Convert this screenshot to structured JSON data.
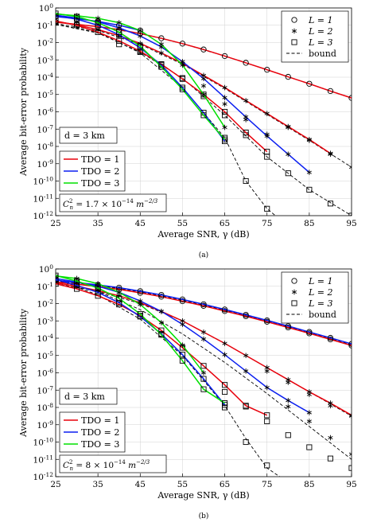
{
  "chart_data": [
    {
      "type": "line",
      "caption": "(a)",
      "xlabel": "Average SNR, γ (dB)",
      "ylabel": "Average bit-error probability",
      "xlim": [
        25,
        95
      ],
      "ylim_exp": [
        -12,
        0
      ],
      "yscale": "log",
      "grid": true,
      "x_ticks": [
        25,
        35,
        45,
        55,
        65,
        75,
        85,
        95
      ],
      "y_tick_exponents": [
        0,
        -1,
        -2,
        -3,
        -4,
        -5,
        -6,
        -7,
        -8,
        -9,
        -10,
        -11,
        -12
      ],
      "y_tick_prefix": "10",
      "annotation_distance": "d = 3 km",
      "annotation_cn2": {
        "lhs": "C",
        "sub": "n",
        "sup": "2",
        "eq": " = 1.7 × 10",
        "exp": "−14",
        "unit": " m",
        "unit_exp": "−2/3"
      },
      "marker_legend": {
        "position": "top-right",
        "entries": [
          {
            "label": "L = 1",
            "marker": "circle"
          },
          {
            "label": "L = 2",
            "marker": "star"
          },
          {
            "label": "L = 3",
            "marker": "square"
          },
          {
            "label": "bound",
            "marker": "dashed-line"
          }
        ]
      },
      "color_legend": {
        "position": "bottom-left",
        "entries": [
          {
            "label": "TDO = 1",
            "color": "#e8000b"
          },
          {
            "label": "TDO = 2",
            "color": "#0b1ff0"
          },
          {
            "label": "TDO = 3",
            "color": "#00e000"
          }
        ]
      },
      "series": [
        {
          "tdo": 1,
          "L": 1,
          "color": "#e8000b",
          "marker": "circle",
          "x": [
            25,
            30,
            35,
            40,
            45,
            50,
            55,
            60,
            65,
            70,
            75,
            80,
            85,
            90,
            95
          ],
          "log10y": [
            -0.82,
            -0.95,
            -1.08,
            -1.25,
            -1.48,
            -1.75,
            -2.06,
            -2.4,
            -2.78,
            -3.17,
            -3.57,
            -3.98,
            -4.38,
            -4.8,
            -5.2
          ]
        },
        {
          "tdo": 1,
          "L": 2,
          "color": "#e8000b",
          "marker": "star",
          "x": [
            25,
            30,
            35,
            40,
            45,
            50,
            55,
            60,
            65,
            70,
            75,
            80,
            85,
            90
          ],
          "log10y": [
            -0.78,
            -0.98,
            -1.25,
            -1.6,
            -2.05,
            -2.6,
            -3.2,
            -3.9,
            -4.6,
            -5.35,
            -6.1,
            -6.85,
            -7.6,
            -8.4
          ]
        },
        {
          "tdo": 1,
          "L": 3,
          "color": "#e8000b",
          "marker": "square",
          "x": [
            25,
            30,
            35,
            40,
            45,
            50,
            55,
            60,
            65,
            70,
            75
          ],
          "log10y": [
            -0.75,
            -1.0,
            -1.4,
            -1.9,
            -2.5,
            -3.25,
            -4.1,
            -5.0,
            -6.0,
            -7.2,
            -8.3
          ]
        },
        {
          "tdo": 2,
          "L": 1,
          "color": "#0b1ff0",
          "marker": "circle",
          "x": [
            25,
            30,
            35,
            40,
            45
          ],
          "log10y": [
            -0.5,
            -0.62,
            -0.78,
            -1.0,
            -1.3
          ]
        },
        {
          "tdo": 2,
          "L": 2,
          "color": "#0b1ff0",
          "marker": "star",
          "x": [
            25,
            30,
            35,
            40,
            45,
            50,
            55,
            60,
            65,
            70,
            75,
            80,
            85
          ],
          "log10y": [
            -0.42,
            -0.58,
            -0.8,
            -1.15,
            -1.62,
            -2.25,
            -3.1,
            -4.08,
            -5.18,
            -6.3,
            -7.4,
            -8.45,
            -9.5
          ]
        },
        {
          "tdo": 2,
          "L": 3,
          "color": "#0b1ff0",
          "marker": "square",
          "x": [
            25,
            30,
            35,
            40,
            45,
            50,
            55,
            60,
            65
          ],
          "log10y": [
            -0.45,
            -0.65,
            -1.0,
            -1.55,
            -2.3,
            -3.3,
            -4.6,
            -6.05,
            -7.7
          ]
        },
        {
          "tdo": 3,
          "L": 2,
          "color": "#00e000",
          "marker": "star",
          "x": [
            25,
            30,
            35,
            40,
            45,
            50,
            55,
            60,
            65
          ],
          "log10y": [
            -0.35,
            -0.45,
            -0.6,
            -0.85,
            -1.3,
            -2.1,
            -3.3,
            -5.0,
            -6.9
          ]
        },
        {
          "tdo": 3,
          "L": 3,
          "color": "#00e000",
          "marker": "square",
          "x": [
            25,
            30,
            35,
            40,
            45,
            50,
            55,
            60,
            65
          ],
          "log10y": [
            -0.32,
            -0.5,
            -0.85,
            -1.4,
            -2.2,
            -3.4,
            -4.7,
            -6.2,
            -7.6
          ]
        }
      ],
      "bounds": [
        {
          "x": [
            25,
            35,
            45,
            55,
            65,
            75,
            85,
            95
          ],
          "log10y": [
            -0.82,
            -1.08,
            -1.48,
            -2.06,
            -2.78,
            -3.57,
            -4.38,
            -5.2
          ]
        },
        {
          "x": [
            25,
            35,
            45,
            55,
            65,
            75,
            85,
            95
          ],
          "log10y": [
            -0.9,
            -1.3,
            -2.1,
            -3.25,
            -4.65,
            -6.15,
            -7.65,
            -9.2
          ]
        },
        {
          "x": [
            25,
            35,
            45,
            55,
            65,
            75,
            85,
            95
          ],
          "log10y": [
            -0.95,
            -1.45,
            -2.55,
            -4.05,
            -6.2,
            -8.6,
            -10.5,
            -12.0
          ]
        },
        {
          "x": [
            25,
            35,
            45,
            55,
            65,
            70,
            75,
            77
          ],
          "log10y": [
            -0.95,
            -1.4,
            -2.6,
            -4.6,
            -7.5,
            -10.0,
            -11.6,
            -12.0
          ]
        },
        {
          "x": [
            25,
            30,
            35,
            40,
            45,
            50,
            55,
            60
          ],
          "log10y": [
            -0.35,
            -0.45,
            -0.6,
            -0.85,
            -1.3,
            -2.1,
            -3.3,
            -5.0
          ]
        }
      ],
      "bound_markers": [
        {
          "marker": "star",
          "x": [
            80,
            85,
            90,
            95
          ],
          "log10y": [
            -6.9,
            -7.65,
            -8.45,
            -9.2
          ]
        },
        {
          "marker": "square",
          "x": [
            40,
            45,
            50,
            55,
            60,
            65,
            70,
            75,
            80,
            85,
            90,
            95
          ],
          "log10y": [
            -2.1,
            -2.55,
            -3.25,
            -4.05,
            -5.1,
            -6.2,
            -7.35,
            -8.6,
            -9.55,
            -10.5,
            -11.3,
            -12.0
          ]
        },
        {
          "marker": "square",
          "x": [
            65,
            70,
            75
          ],
          "log10y": [
            -7.5,
            -10.0,
            -11.6
          ]
        },
        {
          "marker": "star",
          "x": [
            60,
            65,
            70,
            75
          ],
          "log10y": [
            -4.5,
            -5.55,
            -6.45,
            -7.3
          ]
        }
      ]
    },
    {
      "type": "line",
      "caption": "(b)",
      "xlabel": "Average SNR, γ (dB)",
      "ylabel": "Average bit-error probability",
      "xlim": [
        25,
        95
      ],
      "ylim_exp": [
        -12,
        0
      ],
      "yscale": "log",
      "grid": true,
      "x_ticks": [
        25,
        35,
        45,
        55,
        65,
        75,
        85,
        95
      ],
      "y_tick_exponents": [
        0,
        -1,
        -2,
        -3,
        -4,
        -5,
        -6,
        -7,
        -8,
        -9,
        -10,
        -11,
        -12
      ],
      "y_tick_prefix": "10",
      "annotation_distance": "d = 3 km",
      "annotation_cn2": {
        "lhs": "C",
        "sub": "n",
        "sup": "2",
        "eq": " = 8 × 10",
        "exp": "−14",
        "unit": " m",
        "unit_exp": "−2/3"
      },
      "marker_legend": {
        "position": "top-right",
        "entries": [
          {
            "label": "L = 1",
            "marker": "circle"
          },
          {
            "label": "L = 2",
            "marker": "star"
          },
          {
            "label": "L = 3",
            "marker": "square"
          },
          {
            "label": "bound",
            "marker": "dashed-line"
          }
        ]
      },
      "color_legend": {
        "position": "bottom-left",
        "entries": [
          {
            "label": "TDO = 1",
            "color": "#e8000b"
          },
          {
            "label": "TDO = 2",
            "color": "#0b1ff0"
          },
          {
            "label": "TDO = 3",
            "color": "#00e000"
          }
        ]
      },
      "series": [
        {
          "tdo": 1,
          "L": 1,
          "color": "#e8000b",
          "marker": "circle",
          "x": [
            25,
            30,
            35,
            40,
            45,
            50,
            55,
            60,
            65,
            70,
            75,
            80,
            85,
            90,
            95
          ],
          "log10y": [
            -0.75,
            -0.88,
            -1.02,
            -1.18,
            -1.38,
            -1.6,
            -1.86,
            -2.13,
            -2.43,
            -2.73,
            -3.05,
            -3.38,
            -3.72,
            -4.07,
            -4.42
          ]
        },
        {
          "tdo": 1,
          "L": 2,
          "color": "#e8000b",
          "marker": "star",
          "x": [
            25,
            30,
            35,
            40,
            45,
            50,
            55,
            60,
            65,
            70,
            75,
            80,
            85,
            90,
            95
          ],
          "log10y": [
            -0.8,
            -1.0,
            -1.25,
            -1.55,
            -1.95,
            -2.45,
            -3.0,
            -3.65,
            -4.3,
            -5.0,
            -5.7,
            -6.4,
            -7.1,
            -7.75,
            -8.45
          ]
        },
        {
          "tdo": 1,
          "L": 3,
          "color": "#e8000b",
          "marker": "square",
          "x": [
            25,
            30,
            35,
            40,
            45,
            50,
            55,
            60,
            65,
            70,
            75
          ],
          "log10y": [
            -0.85,
            -1.15,
            -1.55,
            -2.05,
            -2.7,
            -3.55,
            -4.55,
            -5.6,
            -6.7,
            -7.9,
            -8.45
          ]
        },
        {
          "tdo": 2,
          "L": 1,
          "color": "#0b1ff0",
          "marker": "circle",
          "x": [
            25,
            30,
            35,
            40,
            45,
            50,
            55,
            60,
            65,
            70,
            75,
            80,
            85,
            90,
            95
          ],
          "log10y": [
            -0.65,
            -0.78,
            -0.92,
            -1.08,
            -1.28,
            -1.5,
            -1.76,
            -2.04,
            -2.34,
            -2.65,
            -2.97,
            -3.3,
            -3.64,
            -3.98,
            -4.33
          ]
        },
        {
          "tdo": 2,
          "L": 2,
          "color": "#0b1ff0",
          "marker": "star",
          "x": [
            25,
            30,
            35,
            40,
            45,
            50,
            55,
            60,
            65,
            70,
            75,
            80,
            85
          ],
          "log10y": [
            -0.55,
            -0.75,
            -1.0,
            -1.35,
            -1.85,
            -2.45,
            -3.2,
            -4.05,
            -4.95,
            -5.9,
            -6.85,
            -7.6,
            -8.3
          ]
        },
        {
          "tdo": 2,
          "L": 3,
          "color": "#0b1ff0",
          "marker": "square",
          "x": [
            25,
            30,
            35,
            40,
            45,
            50,
            55,
            60,
            65
          ],
          "log10y": [
            -0.6,
            -0.95,
            -1.35,
            -1.95,
            -2.75,
            -3.75,
            -4.95,
            -6.35,
            -7.85
          ]
        },
        {
          "tdo": 3,
          "L": 2,
          "color": "#00e000",
          "marker": "star",
          "x": [
            25,
            30,
            35,
            40,
            45,
            50,
            55,
            60
          ],
          "log10y": [
            -0.4,
            -0.55,
            -0.85,
            -1.35,
            -2.05,
            -3.1,
            -4.4,
            -6.0
          ]
        },
        {
          "tdo": 3,
          "L": 3,
          "color": "#00e000",
          "marker": "square",
          "x": [
            25,
            30,
            35,
            40,
            45,
            50,
            55,
            60,
            65
          ],
          "log10y": [
            -0.38,
            -0.7,
            -1.1,
            -1.7,
            -2.6,
            -3.8,
            -5.3,
            -6.95,
            -7.75
          ]
        }
      ],
      "bounds": [
        {
          "x": [
            25,
            35,
            45,
            55,
            65,
            75,
            85,
            95
          ],
          "log10y": [
            -0.7,
            -0.95,
            -1.32,
            -1.8,
            -2.38,
            -3.0,
            -3.68,
            -4.38
          ]
        },
        {
          "x": [
            25,
            35,
            45,
            55,
            65,
            75,
            85,
            95
          ],
          "log10y": [
            -0.85,
            -1.3,
            -2.0,
            -3.0,
            -4.3,
            -5.7,
            -7.1,
            -8.5
          ]
        },
        {
          "x": [
            25,
            35,
            45,
            55,
            65,
            75,
            85,
            95
          ],
          "log10y": [
            -0.65,
            -1.3,
            -2.35,
            -3.75,
            -5.4,
            -7.2,
            -9.1,
            -11.0
          ]
        },
        {
          "x": [
            25,
            35,
            45,
            55,
            65,
            70,
            75,
            78
          ],
          "log10y": [
            -0.6,
            -1.5,
            -2.9,
            -5.0,
            -7.9,
            -9.8,
            -11.5,
            -12.0
          ]
        }
      ],
      "bound_markers": [
        {
          "marker": "star",
          "x": [
            75,
            80,
            85,
            90,
            95
          ],
          "log10y": [
            -5.9,
            -6.55,
            -7.25,
            -7.9,
            -8.5
          ]
        },
        {
          "marker": "square",
          "x": [
            65,
            70,
            75,
            80,
            85,
            90,
            95
          ],
          "log10y": [
            -7.1,
            -7.95,
            -8.8,
            -9.6,
            -10.3,
            -10.95,
            -11.5
          ]
        },
        {
          "marker": "star",
          "x": [
            80,
            85,
            90,
            95
          ],
          "log10y": [
            -7.95,
            -8.8,
            -9.75,
            -10.7
          ]
        },
        {
          "marker": "square",
          "x": [
            65,
            70,
            75
          ],
          "log10y": [
            -8.0,
            -10.0,
            -11.35
          ]
        }
      ]
    }
  ]
}
